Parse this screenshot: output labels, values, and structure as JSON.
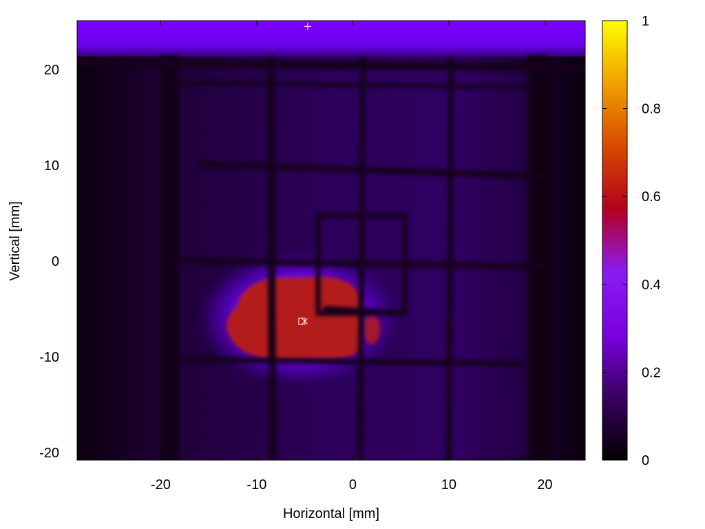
{
  "chart_data": {
    "type": "heatmap",
    "title": "",
    "xlabel": "Horizontal [mm]",
    "ylabel": "Vertical [mm]",
    "xlim": [
      -28.7,
      24.2
    ],
    "ylim": [
      -20.8,
      25.1
    ],
    "x_ticks": [
      -20,
      -10,
      0,
      10,
      20
    ],
    "y_ticks": [
      -20,
      -10,
      0,
      10,
      20
    ],
    "colorbar": {
      "range": [
        0,
        1
      ],
      "ticks": [
        0,
        0.2,
        0.4,
        0.6,
        0.8,
        1
      ],
      "palette": [
        "#000000",
        "#3a0060",
        "#7a00e0",
        "#8a1cf0",
        "#b4001e",
        "#d84a00",
        "#f0a000",
        "#ffff00"
      ]
    },
    "image_summary": {
      "background_level": 0.08,
      "beam_spot_level": 0.5,
      "beam_spot_center": [
        -5.3,
        -6.3
      ],
      "top_band_level": 0.22,
      "grid_vertical_lines_x": [
        -8.8,
        0.8,
        10.2
      ],
      "grid_horizontal_lines_y": [
        19.4,
        9.8,
        0.0,
        -10.3
      ],
      "inner_rectangle": {
        "x": [
          -3.8,
          5.4
        ],
        "y": [
          -5.7,
          4.8
        ]
      }
    },
    "markers": [
      {
        "symbol": "+",
        "x": -4.7,
        "y": 24.5
      },
      {
        "symbol": "box",
        "x": -5.3,
        "y": -6.3
      },
      {
        "symbol": "x",
        "x": -5.0,
        "y": -6.3
      }
    ]
  }
}
